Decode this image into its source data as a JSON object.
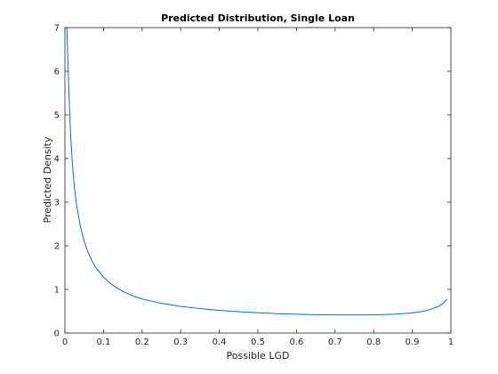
{
  "chart_data": {
    "type": "line",
    "title": "Predicted Distribution, Single Loan",
    "xlabel": "Possible LGD",
    "ylabel": "Predicted Density",
    "xlim": [
      0,
      1
    ],
    "ylim": [
      0,
      7
    ],
    "xticks": [
      "0",
      "0.1",
      "0.2",
      "0.3",
      "0.4",
      "0.5",
      "0.6",
      "0.7",
      "0.8",
      "0.9",
      "1"
    ],
    "yticks": [
      "0",
      "1",
      "2",
      "3",
      "4",
      "5",
      "6",
      "7"
    ],
    "grid": false,
    "colors": {
      "line": "#0072bd",
      "axes": "#262626"
    },
    "series": [
      {
        "x": [
          0.005,
          0.01,
          0.015,
          0.02,
          0.025,
          0.03,
          0.04,
          0.05,
          0.06,
          0.07,
          0.08,
          0.1,
          0.12,
          0.15,
          0.18,
          0.2,
          0.25,
          0.3,
          0.35,
          0.4,
          0.45,
          0.5,
          0.55,
          0.6,
          0.65,
          0.7,
          0.75,
          0.8,
          0.85,
          0.9,
          0.93,
          0.95,
          0.97,
          0.98,
          0.99
        ],
        "values": [
          7.0,
          5.6,
          4.5,
          3.8,
          3.3,
          2.95,
          2.45,
          2.1,
          1.85,
          1.65,
          1.5,
          1.28,
          1.12,
          0.95,
          0.84,
          0.78,
          0.68,
          0.61,
          0.56,
          0.52,
          0.49,
          0.465,
          0.445,
          0.43,
          0.42,
          0.415,
          0.415,
          0.415,
          0.43,
          0.46,
          0.5,
          0.55,
          0.62,
          0.68,
          0.77
        ]
      }
    ]
  }
}
